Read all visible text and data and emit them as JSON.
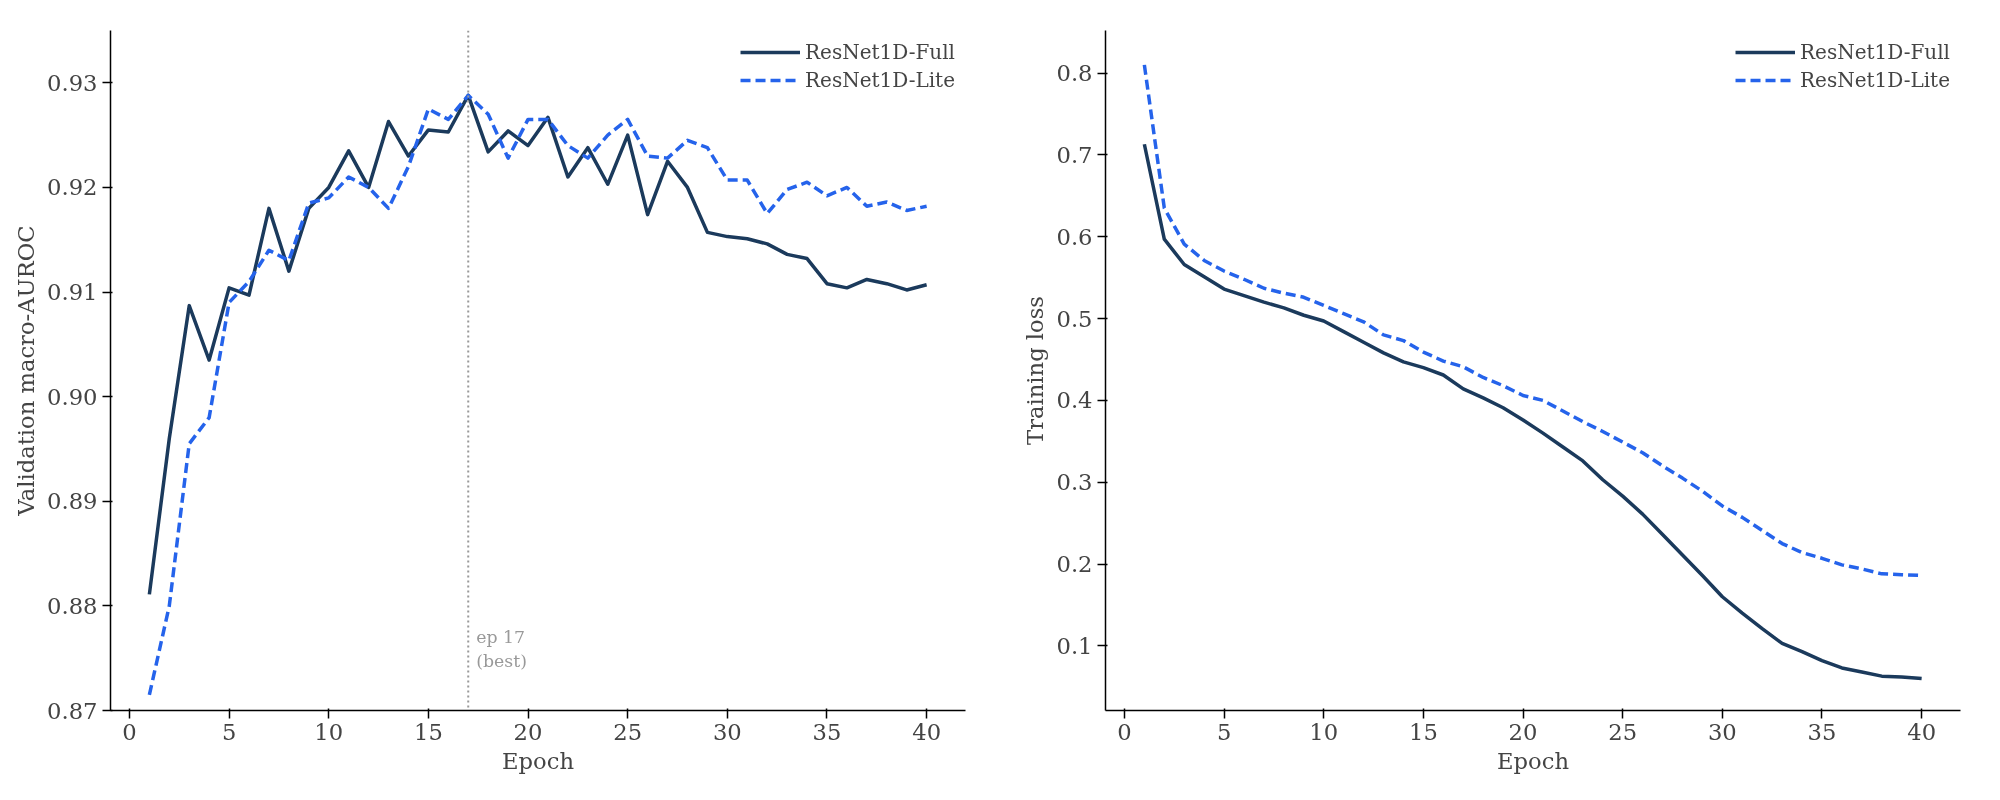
{
  "chart_data": [
    {
      "type": "line",
      "xlabel": "Epoch",
      "ylabel": "Validation macro-AUROC",
      "x": [
        1,
        2,
        3,
        4,
        5,
        6,
        7,
        8,
        9,
        10,
        11,
        12,
        13,
        14,
        15,
        16,
        17,
        18,
        19,
        20,
        21,
        22,
        23,
        24,
        25,
        26,
        27,
        28,
        29,
        30,
        31,
        32,
        33,
        34,
        35,
        36,
        37,
        38,
        39,
        40
      ],
      "series": [
        {
          "name": "ResNet1D-Full",
          "color": "#1b3a5c",
          "line_style": "solid",
          "values": [
            0.8811,
            0.896,
            0.9087,
            0.9035,
            0.9104,
            0.9097,
            0.918,
            0.912,
            0.918,
            0.92,
            0.9235,
            0.92,
            0.9263,
            0.923,
            0.9255,
            0.9253,
            0.9288,
            0.9234,
            0.9254,
            0.924,
            0.9267,
            0.921,
            0.9238,
            0.9203,
            0.925,
            0.9174,
            0.9225,
            0.92,
            0.9157,
            0.9153,
            0.9151,
            0.9146,
            0.9136,
            0.9132,
            0.9108,
            0.9104,
            0.9112,
            0.9108,
            0.9102,
            0.9107
          ]
        },
        {
          "name": "ResNet1D-Lite",
          "color": "#2563eb",
          "line_style": "dashed",
          "values": [
            0.8715,
            0.88,
            0.8955,
            0.898,
            0.909,
            0.911,
            0.914,
            0.913,
            0.9185,
            0.919,
            0.921,
            0.92,
            0.918,
            0.922,
            0.9275,
            0.9265,
            0.9288,
            0.927,
            0.9228,
            0.9265,
            0.9265,
            0.924,
            0.9228,
            0.925,
            0.9265,
            0.923,
            0.9228,
            0.9245,
            0.9238,
            0.9207,
            0.9207,
            0.9175,
            0.9198,
            0.9205,
            0.9192,
            0.92,
            0.9182,
            0.9186,
            0.9178,
            0.9182
          ]
        }
      ],
      "xlim": [
        -0.95,
        41.95
      ],
      "ylim": [
        0.87,
        0.935
      ],
      "xticks": [
        0,
        5,
        10,
        15,
        20,
        25,
        30,
        35,
        40
      ],
      "yticks": [
        {
          "value": 0.87,
          "label": "0.87"
        },
        {
          "value": 0.88,
          "label": "0.88"
        },
        {
          "value": 0.89,
          "label": "0.89"
        },
        {
          "value": 0.9,
          "label": "0.90"
        },
        {
          "value": 0.91,
          "label": "0.91"
        },
        {
          "value": 0.92,
          "label": "0.92"
        },
        {
          "value": 0.93,
          "label": "0.93"
        }
      ],
      "ref_lines": [
        {
          "axis": "x",
          "value": 17,
          "label": "ep 17\n(best)",
          "color": "#999999",
          "line_style": "dotted"
        }
      ],
      "legend": "top right",
      "grid": false
    },
    {
      "type": "line",
      "xlabel": "Epoch",
      "ylabel": "Training loss",
      "x": [
        1,
        2,
        3,
        4,
        5,
        6,
        7,
        8,
        9,
        10,
        11,
        12,
        13,
        14,
        15,
        16,
        17,
        18,
        19,
        20,
        21,
        22,
        23,
        24,
        25,
        26,
        27,
        28,
        29,
        30,
        31,
        32,
        33,
        34,
        35,
        36,
        37,
        38,
        39,
        40
      ],
      "series": [
        {
          "name": "ResNet1D-Full",
          "color": "#1b3a5c",
          "line_style": "solid",
          "values": [
            0.713,
            0.597,
            0.566,
            0.551,
            0.536,
            0.528,
            0.52,
            0.513,
            0.504,
            0.497,
            0.484,
            0.471,
            0.458,
            0.447,
            0.44,
            0.431,
            0.414,
            0.403,
            0.391,
            0.376,
            0.36,
            0.343,
            0.326,
            0.303,
            0.283,
            0.261,
            0.236,
            0.211,
            0.186,
            0.16,
            0.14,
            0.121,
            0.103,
            0.093,
            0.082,
            0.073,
            0.068,
            0.063,
            0.062,
            0.06
          ]
        },
        {
          "name": "ResNet1D-Lite",
          "color": "#2563eb",
          "line_style": "dashed",
          "values": [
            0.81,
            0.635,
            0.591,
            0.571,
            0.558,
            0.548,
            0.537,
            0.531,
            0.526,
            0.516,
            0.506,
            0.496,
            0.48,
            0.473,
            0.459,
            0.448,
            0.441,
            0.428,
            0.418,
            0.406,
            0.4,
            0.387,
            0.374,
            0.362,
            0.349,
            0.336,
            0.32,
            0.305,
            0.289,
            0.271,
            0.257,
            0.241,
            0.225,
            0.214,
            0.207,
            0.199,
            0.194,
            0.188,
            0.187,
            0.186
          ]
        }
      ],
      "xlim": [
        -0.95,
        41.95
      ],
      "ylim": [
        0.021,
        0.852
      ],
      "xticks": [
        0,
        5,
        10,
        15,
        20,
        25,
        30,
        35,
        40
      ],
      "yticks": [
        0.1,
        0.2,
        0.3,
        0.4,
        0.5,
        0.6,
        0.7,
        0.8
      ],
      "legend": "top right",
      "grid": false
    }
  ]
}
